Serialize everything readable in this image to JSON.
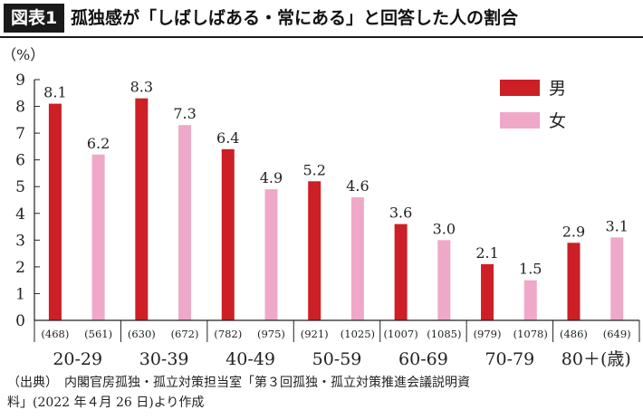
{
  "header": {
    "figure_label": "図表1",
    "title": "孤独感が「しばしばある・常にある」と回答した人の割合"
  },
  "source": {
    "line1": "（出典）　内閣官房孤独・孤立対策担当室「第３回孤独・孤立対策推進会議説明資",
    "line2": "料」(2022 年４月 26 日)より作成"
  },
  "colors": {
    "male": "#cc1f26",
    "female": "#f0a8c8"
  },
  "chart_data": {
    "type": "bar",
    "title": "孤独感が「しばしばある・常にある」と回答した人の割合",
    "ylabel": "（%）",
    "ylim": [
      0,
      9
    ],
    "yticks": [
      "0",
      "1",
      "2",
      "3",
      "4",
      "5",
      "6",
      "7",
      "8",
      "9"
    ],
    "categories": [
      "20-29",
      "30-39",
      "40-49",
      "50-59",
      "60-69",
      "70-79",
      "80＋(歳)"
    ],
    "series": [
      {
        "name": "男",
        "values": [
          8.1,
          8.3,
          6.4,
          5.2,
          3.6,
          2.1,
          2.9
        ],
        "labels": [
          "8.1",
          "8.3",
          "6.4",
          "5.2",
          "3.6",
          "2.1",
          "2.9"
        ],
        "sample_sizes": [
          "(468)",
          "(630)",
          "(782)",
          "(921)",
          "(1007)",
          "(979)",
          "(486)"
        ]
      },
      {
        "name": "女",
        "values": [
          6.2,
          7.3,
          4.9,
          4.6,
          3.0,
          1.5,
          3.1
        ],
        "labels": [
          "6.2",
          "7.3",
          "4.9",
          "4.6",
          "3.0",
          "1.5",
          "3.1"
        ],
        "sample_sizes": [
          "(561)",
          "(672)",
          "(975)",
          "(1025)",
          "(1085)",
          "(1078)",
          "(649)"
        ]
      }
    ],
    "legend_position": "top-right",
    "grid": false
  }
}
